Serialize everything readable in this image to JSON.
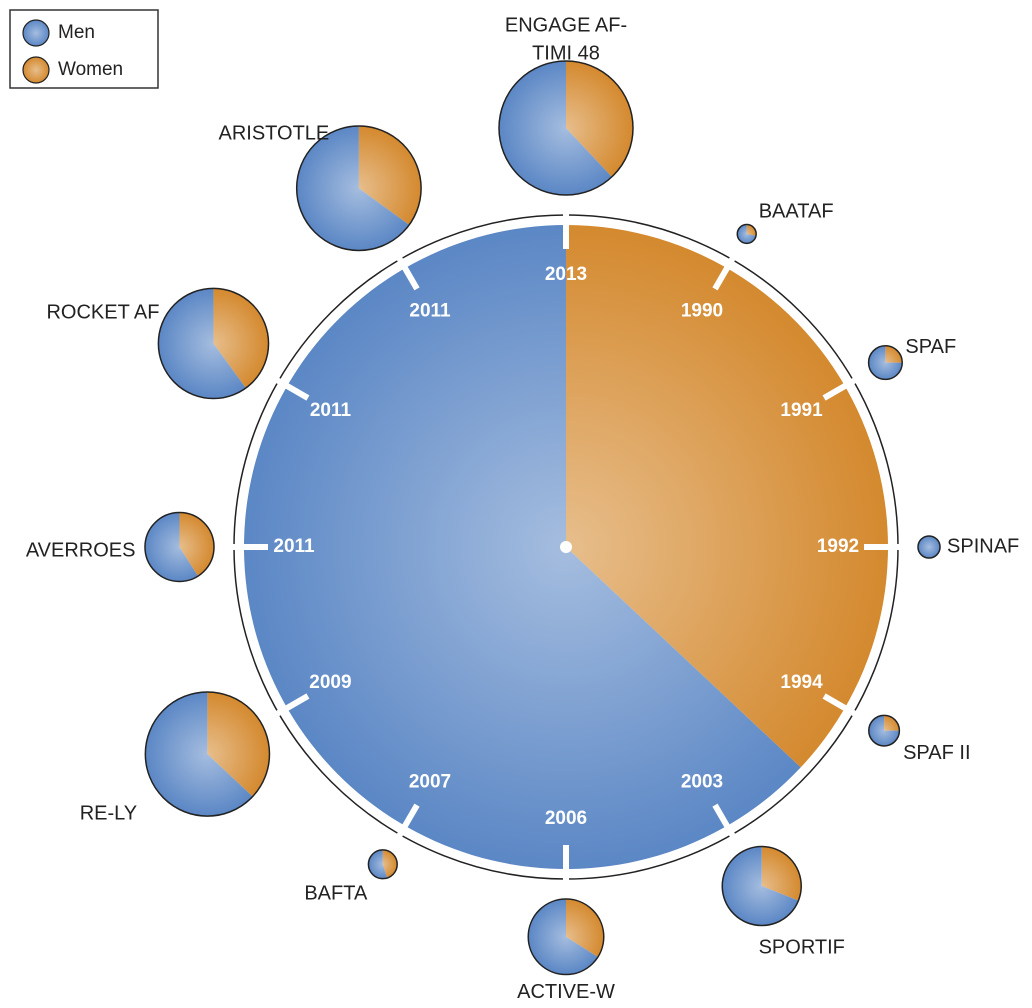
{
  "chart_data": {
    "type": "pie",
    "series": [
      {
        "name": "Men",
        "color": "#5b87c5"
      },
      {
        "name": "Women",
        "color": "#d4892e"
      }
    ],
    "legend": "top-left",
    "overall": [
      63,
      37
    ],
    "trials": [
      {
        "label": [
          "ENGAGE AF-",
          "TIMI 48"
        ],
        "year": 2013,
        "size": 21105,
        "values": [
          62,
          38
        ]
      },
      {
        "label": [
          "BAATAF"
        ],
        "year": 1990,
        "size": 420,
        "values": [
          72,
          28
        ]
      },
      {
        "label": [
          "SPAF"
        ],
        "year": 1991,
        "size": 1330,
        "values": [
          75,
          25
        ]
      },
      {
        "label": [
          "SPINAF"
        ],
        "year": 1992,
        "size": 571,
        "values": [
          100,
          0
        ]
      },
      {
        "label": [
          "SPAF II"
        ],
        "year": 1994,
        "size": 1100,
        "values": [
          75,
          25
        ]
      },
      {
        "label": [
          "SPORTIF"
        ],
        "year": 2003,
        "size": 7329,
        "values": [
          69,
          31
        ]
      },
      {
        "label": [
          "ACTIVE-W"
        ],
        "year": 2006,
        "size": 6706,
        "values": [
          66,
          34
        ]
      },
      {
        "label": [
          "BAFTA"
        ],
        "year": 2007,
        "size": 973,
        "values": [
          55,
          45
        ]
      },
      {
        "label": [
          "RE-LY"
        ],
        "year": 2009,
        "size": 18113,
        "values": [
          63,
          37
        ]
      },
      {
        "label": [
          "AVERROES"
        ],
        "year": 2011,
        "size": 5599,
        "values": [
          59,
          41
        ]
      },
      {
        "label": [
          "ROCKET AF"
        ],
        "year": 2011,
        "size": 14264,
        "values": [
          60,
          40
        ]
      },
      {
        "label": [
          "ARISTOTLE"
        ],
        "year": 2011,
        "size": 18201,
        "values": [
          65,
          35
        ]
      }
    ]
  }
}
